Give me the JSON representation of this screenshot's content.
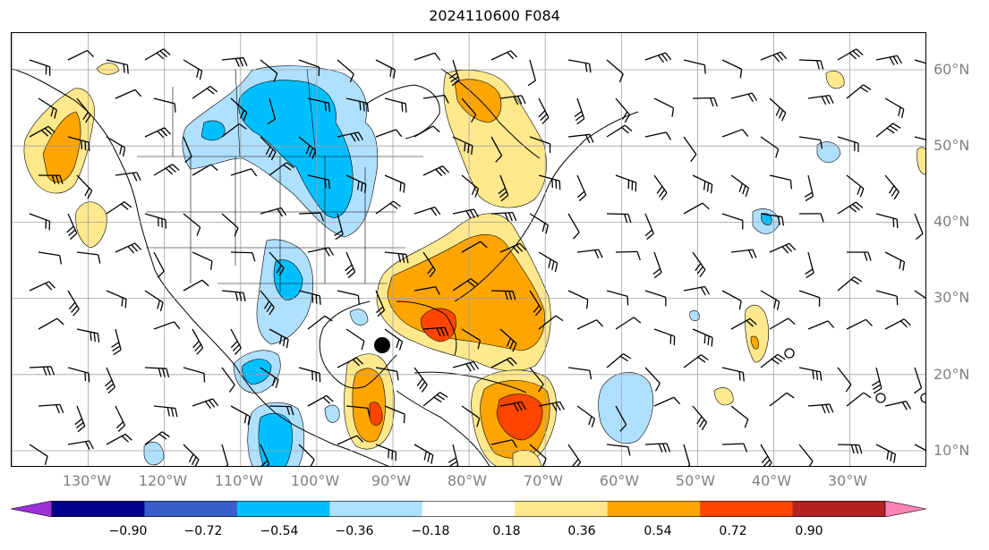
{
  "title": "2024110600 F084",
  "lat_labels": [
    "60°N",
    "50°N",
    "40°N",
    "30°N",
    "20°N",
    "10°N"
  ],
  "lon_labels": [
    "130°W",
    "120°W",
    "110°W",
    "100°W",
    "90°W",
    "80°W",
    "70°W",
    "60°W",
    "50°W",
    "40°W",
    "30°W"
  ],
  "colorbar": {
    "ticks": [
      "−0.90",
      "−0.72",
      "−0.54",
      "−0.36",
      "−0.18",
      "0.18",
      "0.36",
      "0.54",
      "0.72",
      "0.90"
    ],
    "under_color": "#9b30d9",
    "over_color": "#ff82b4",
    "colors": [
      "#00008b",
      "#3a5fcd",
      "#00bfff",
      "#afe0ff",
      "#ffffff",
      "#ffe98c",
      "#ffa500",
      "#ff4500",
      "#b22222"
    ]
  },
  "colors": {
    "light_blue": "#afe0ff",
    "blue": "#00bfff",
    "yellow": "#ffe98c",
    "orange": "#ffa500",
    "red_orange": "#ff4500",
    "grid": "#a0a0a0"
  }
}
